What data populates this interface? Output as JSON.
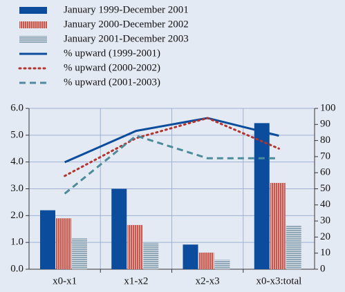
{
  "chart_data": {
    "type": "bar",
    "categories": [
      "x0-x1",
      "x1-x2",
      "x2-x3",
      "x0-x3:total"
    ],
    "series": [
      {
        "name": "January 1999-December 2001",
        "type": "bar",
        "color": "#0b4c9c",
        "values": [
          2.2,
          3.0,
          0.92,
          5.45
        ]
      },
      {
        "name": "January 2000-December 2002",
        "type": "bar",
        "color": "#c9564c",
        "values": [
          1.9,
          1.65,
          0.62,
          3.22
        ]
      },
      {
        "name": "January 2001-December 2003",
        "type": "bar",
        "color": "#8ea6b6",
        "values": [
          1.15,
          0.98,
          0.35,
          1.62
        ]
      },
      {
        "name": "% upward (1999-2001)",
        "type": "line",
        "style": "solid",
        "color": "#0b4c9c",
        "axis": "y2",
        "values": [
          66.5,
          86,
          94,
          83
        ]
      },
      {
        "name": "% upward (2000-2002)",
        "type": "line",
        "style": "dotted",
        "color": "#b3332e",
        "axis": "y2",
        "values": [
          58,
          81.5,
          94,
          75
        ]
      },
      {
        "name": "% upward (2001-2003)",
        "type": "line",
        "style": "dashed",
        "color": "#4b8b9b",
        "axis": "y2",
        "values": [
          47,
          83,
          69,
          69
        ]
      }
    ],
    "ylim": [
      0,
      6
    ],
    "yticks": [
      {
        "value": 0,
        "label": "0.0"
      },
      {
        "value": 1,
        "label": "1.0"
      },
      {
        "value": 2,
        "label": "2.0"
      },
      {
        "value": 3,
        "label": "3.0"
      },
      {
        "value": 4,
        "label": "4.0"
      },
      {
        "value": 5,
        "label": "5.0"
      },
      {
        "value": 6,
        "label": "6.0"
      }
    ],
    "y2lim": [
      0,
      100
    ],
    "y2ticks": [
      0,
      10,
      20,
      30,
      40,
      50,
      60,
      70,
      80,
      90,
      100
    ],
    "grid": true
  }
}
